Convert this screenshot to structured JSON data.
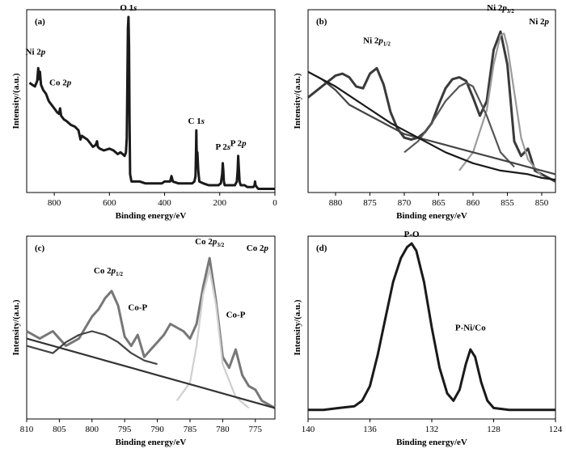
{
  "chart_data": [
    {
      "type": "line",
      "panel_label": "(a)",
      "xlabel": "Binding energy/eV",
      "ylabel": "Intensity/(a.u.)",
      "xlim": [
        900,
        0
      ],
      "ylim": [
        0,
        100
      ],
      "xticks": [
        800,
        600,
        400,
        200,
        0
      ],
      "annotations": [
        {
          "text": "Ni 2p",
          "x": 868,
          "y": 72
        },
        {
          "text": "Co 2p",
          "x": 778,
          "y": 55
        },
        {
          "text": "O 1s",
          "x": 531,
          "y": 96
        },
        {
          "text": "C 1s",
          "x": 285,
          "y": 34
        },
        {
          "text": "P 2s",
          "x": 188,
          "y": 20
        },
        {
          "text": "P 2p",
          "x": 133,
          "y": 22
        }
      ],
      "series": [
        {
          "color": "#1a1a1a",
          "x": [
            890,
            880,
            870,
            862,
            858,
            855,
            852,
            848,
            840,
            830,
            820,
            810,
            800,
            790,
            783,
            779,
            775,
            765,
            755,
            740,
            725,
            712,
            705,
            700,
            690,
            680,
            670,
            660,
            650,
            645,
            642,
            635,
            620,
            600,
            585,
            570,
            560,
            552,
            545,
            540,
            537,
            535,
            533,
            531,
            529,
            527,
            525,
            520,
            505,
            490,
            470,
            450,
            430,
            410,
            400,
            390,
            380,
            375,
            370,
            350,
            330,
            310,
            300,
            292,
            288,
            286,
            285,
            284,
            283,
            281,
            278,
            274,
            260,
            240,
            220,
            205,
            196,
            191,
            189,
            187,
            185,
            182,
            170,
            160,
            145,
            138,
            135,
            133,
            131,
            128,
            124,
            110,
            100,
            90,
            78,
            74,
            72,
            70,
            66,
            60,
            50,
            40,
            30,
            20,
            10,
            5,
            0
          ],
          "values": [
            60,
            59,
            58,
            61,
            68,
            62,
            66,
            59,
            56,
            54,
            50,
            48,
            46,
            44,
            43,
            46,
            42,
            40,
            39,
            37,
            36,
            34,
            29,
            31,
            30,
            29,
            27,
            25,
            26,
            28,
            25,
            24,
            23,
            24,
            23,
            21,
            22,
            21,
            20,
            22,
            30,
            60,
            90,
            96,
            80,
            40,
            10,
            6,
            6,
            6,
            5,
            5,
            5,
            5,
            6,
            6,
            6,
            9,
            6,
            5,
            5,
            5,
            5,
            6,
            9,
            22,
            34,
            25,
            20,
            22,
            12,
            6,
            5,
            4,
            4,
            4,
            5,
            10,
            16,
            12,
            6,
            4,
            4,
            4,
            4,
            6,
            12,
            20,
            14,
            6,
            4,
            4,
            3,
            3,
            3,
            4,
            6,
            4,
            3,
            2,
            2,
            2,
            2,
            2,
            2,
            2,
            2
          ]
        }
      ]
    },
    {
      "type": "line",
      "panel_label": "(b)",
      "title": "Ni 2p",
      "xlabel": "Binding energy/eV",
      "ylabel": "Intensity/(a.u.)",
      "xlim": [
        884,
        848
      ],
      "ylim": [
        0,
        100
      ],
      "xticks": [
        880,
        875,
        870,
        865,
        860,
        855,
        850
      ],
      "annotations": [
        {
          "text": "Ni 2p1/2",
          "x": 874.0,
          "y": 78
        },
        {
          "text": "Ni 2p3/2",
          "x": 856.0,
          "y": 96
        }
      ],
      "series": [
        {
          "color": "#3a3a3a",
          "x": [
            884,
            882,
            880,
            879,
            878,
            877,
            876,
            875,
            874,
            873,
            872,
            871,
            870,
            869,
            868,
            867,
            866,
            865,
            864,
            863,
            862,
            861,
            860,
            859,
            858,
            857,
            856,
            855,
            854,
            853,
            852,
            851,
            850,
            849,
            848
          ],
          "values": [
            52,
            58,
            64,
            65,
            63,
            58,
            57,
            65,
            68,
            59,
            44,
            35,
            30,
            29,
            30,
            33,
            38,
            48,
            57,
            62,
            63,
            61,
            52,
            42,
            50,
            78,
            88,
            70,
            28,
            20,
            24,
            12,
            10,
            8,
            6
          ]
        },
        {
          "color": "#9a9a9a",
          "x": [
            862,
            860,
            858,
            857,
            856,
            855.5,
            855,
            854,
            853,
            852,
            850
          ],
          "values": [
            12,
            22,
            45,
            70,
            86,
            87,
            80,
            55,
            30,
            18,
            9
          ]
        },
        {
          "color": "#555555",
          "x": [
            870,
            868,
            866,
            864,
            862,
            861,
            860,
            858,
            856,
            854
          ],
          "values": [
            22,
            28,
            38,
            50,
            58,
            60,
            58,
            42,
            22,
            14
          ]
        },
        {
          "color": "#444444",
          "x": [
            884,
            882,
            880,
            878,
            876,
            874,
            872,
            870,
            868,
            866,
            864,
            862,
            860,
            858,
            856,
            854,
            852,
            850,
            848
          ],
          "values": [
            66,
            62,
            56,
            48,
            44,
            40,
            36,
            32,
            30,
            28,
            26,
            24,
            22,
            20,
            18,
            16,
            14,
            12,
            10
          ]
        },
        {
          "color": "#1a1a1a",
          "x": [
            884,
            880,
            876,
            872,
            868,
            864,
            860,
            856,
            852,
            850,
            848
          ],
          "values": [
            66,
            58,
            48,
            38,
            30,
            22,
            16,
            12,
            10,
            8,
            7
          ]
        }
      ]
    },
    {
      "type": "line",
      "panel_label": "(c)",
      "title": "Co 2p",
      "xlabel": "Binding energy/eV",
      "ylabel": "Intensity/(a.u.)",
      "xlim": [
        810,
        772
      ],
      "ylim": [
        0,
        100
      ],
      "xticks": [
        810,
        805,
        800,
        795,
        790,
        785,
        780,
        775
      ],
      "annotations": [
        {
          "text": "Co 2p1/2",
          "x": 797.5,
          "y": 76
        },
        {
          "text": "Co-P",
          "x": 793.0,
          "y": 56
        },
        {
          "text": "Co 2p3/2",
          "x": 782.0,
          "y": 92
        },
        {
          "text": "Co-P",
          "x": 778.0,
          "y": 52
        }
      ],
      "series": [
        {
          "color": "#777777",
          "x": [
            810,
            808,
            806,
            804,
            802,
            800,
            799,
            798,
            797,
            796,
            795,
            794,
            793,
            792,
            791,
            790,
            789,
            788,
            787,
            786,
            785,
            784,
            783,
            782,
            781,
            780,
            779,
            778,
            777,
            776,
            775,
            774,
            772
          ],
          "values": [
            48,
            44,
            48,
            40,
            44,
            56,
            60,
            66,
            70,
            62,
            45,
            40,
            46,
            34,
            38,
            42,
            46,
            52,
            50,
            48,
            44,
            52,
            72,
            88,
            64,
            34,
            28,
            38,
            24,
            18,
            16,
            10,
            6
          ]
        },
        {
          "color": "#cfcfcf",
          "x": [
            787,
            785,
            784,
            783,
            782,
            781,
            780,
            778,
            776
          ],
          "values": [
            10,
            20,
            40,
            68,
            82,
            62,
            30,
            12,
            6
          ]
        },
        {
          "color": "#444444",
          "x": [
            810,
            806,
            804,
            802,
            800,
            798,
            796,
            794,
            792,
            790
          ],
          "values": [
            40,
            36,
            42,
            46,
            48,
            46,
            42,
            36,
            32,
            30
          ]
        },
        {
          "color": "#333333",
          "x": [
            810,
            806,
            802,
            798,
            794,
            790,
            786,
            782,
            778,
            774,
            772
          ],
          "values": [
            44,
            40,
            36,
            32,
            28,
            24,
            20,
            16,
            12,
            8,
            6
          ]
        }
      ]
    },
    {
      "type": "line",
      "panel_label": "(d)",
      "xlabel": "Binding energy/eV",
      "ylabel": "Intensity/(a.u.)",
      "xlim": [
        140,
        124
      ],
      "ylim": [
        0,
        100
      ],
      "xticks": [
        140,
        136,
        132,
        128,
        124
      ],
      "annotations": [
        {
          "text": "P-O",
          "x": 133.3,
          "y": 96
        },
        {
          "text": "P-Ni/Co",
          "x": 129.5,
          "y": 45
        }
      ],
      "series": [
        {
          "color": "#1a1a1a",
          "x": [
            140,
            139,
            138,
            137,
            136.5,
            136,
            135.5,
            135,
            134.5,
            134,
            133.6,
            133.3,
            133,
            132.5,
            132,
            131.5,
            131,
            130.6,
            130.2,
            129.8,
            129.5,
            129.2,
            128.8,
            128.4,
            128,
            127,
            126,
            125,
            124
          ],
          "values": [
            5,
            5,
            6,
            7,
            10,
            18,
            35,
            55,
            75,
            88,
            94,
            96,
            92,
            75,
            50,
            28,
            14,
            10,
            16,
            30,
            38,
            34,
            20,
            10,
            6,
            5,
            5,
            5,
            5
          ]
        }
      ]
    }
  ]
}
